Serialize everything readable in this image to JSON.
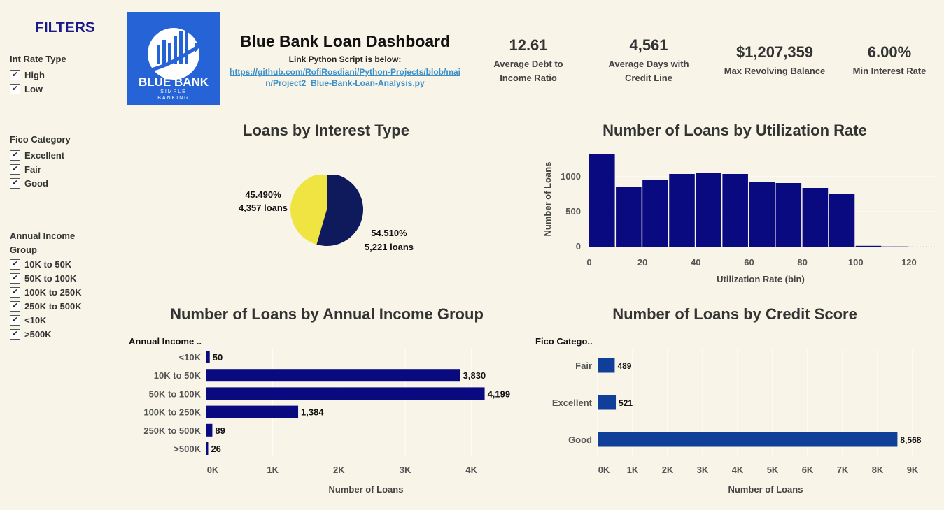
{
  "filters": {
    "title": "FILTERS",
    "groups": [
      {
        "title": "Int Rate Type",
        "options": [
          "High",
          "Low"
        ]
      },
      {
        "title": "Fico Category",
        "options": [
          "Excellent",
          "Fair",
          "Good"
        ]
      },
      {
        "title": "Annual Income Group",
        "options": [
          "10K to 50K",
          "50K to 100K",
          "100K to 250K",
          "250K to 500K",
          "<10K",
          ">500K"
        ]
      }
    ]
  },
  "logo": {
    "line1": "BLUE BANK",
    "line2": "SIMPLE",
    "line3": "BANKING",
    "icon": "bar-chart-arrow-icon"
  },
  "header": {
    "title": "Blue Bank Loan Dashboard",
    "subtitle": "Link Python Script is below:",
    "link": "https://github.com/RofiRosdiani/Python-Projects/blob/main/Project2_Blue-Bank-Loan-Analysis.py"
  },
  "kpis": [
    {
      "value": "12.61",
      "label": "Average Debt to Income Ratio"
    },
    {
      "value": "4,561",
      "label": "Average Days with Credit Line"
    },
    {
      "value": "$1,207,359",
      "label": "Max Revolving Balance"
    },
    {
      "value": "6.00%",
      "label": "Min Interest Rate"
    }
  ],
  "colors": {
    "navy": "#0a0a80",
    "pie_navy": "#0e1a5c",
    "pie_yellow": "#f0e442",
    "credit_blue": "#0f3f98"
  },
  "chart_data": [
    {
      "type": "pie",
      "title": "Loans by Interest Type",
      "slices": [
        {
          "pct_label": "45.490%",
          "count_label": "4,357 loans",
          "value": 4357,
          "color": "#f0e442"
        },
        {
          "pct_label": "54.510%",
          "count_label": "5,221 loans",
          "value": 5221,
          "color": "#0e1a5c"
        }
      ]
    },
    {
      "type": "bar",
      "title": "Number of Loans by Utilization Rate",
      "xlabel": "Utilization Rate (bin)",
      "ylabel": "Number of Loans",
      "bin_start": [
        0,
        10,
        20,
        30,
        40,
        50,
        60,
        70,
        80,
        90,
        100,
        110
      ],
      "values": [
        1330,
        860,
        950,
        1040,
        1050,
        1040,
        920,
        910,
        840,
        760,
        12,
        3
      ],
      "xticks": [
        "0",
        "20",
        "40",
        "60",
        "80",
        "100",
        "120"
      ],
      "yticks": [
        "0",
        "500",
        "1000"
      ],
      "xlim": [
        0,
        130
      ],
      "ylim": [
        0,
        1400
      ],
      "color": "#0a0a80"
    },
    {
      "type": "bar",
      "orientation": "horizontal",
      "title": "Number of Loans by Annual Income Group",
      "category_header": "Annual Income ..",
      "xlabel": "Number of Loans",
      "categories": [
        "<10K",
        "10K to 50K",
        "50K to 100K",
        "100K to 250K",
        "250K to 500K",
        ">500K"
      ],
      "values": [
        50,
        3830,
        4199,
        1384,
        89,
        26
      ],
      "value_labels": [
        "50",
        "3,830",
        "4,199",
        "1,384",
        "89",
        "26"
      ],
      "xticks": [
        "0K",
        "1K",
        "2K",
        "3K",
        "4K"
      ],
      "xlim": [
        0,
        4700
      ],
      "color": "#0a0a80"
    },
    {
      "type": "bar",
      "orientation": "horizontal",
      "title": "Number of Loans by Credit Score",
      "category_header": "Fico Catego..",
      "xlabel": "Number of Loans",
      "categories": [
        "Fair",
        "Excellent",
        "Good"
      ],
      "values": [
        489,
        521,
        8568
      ],
      "value_labels": [
        "489",
        "521",
        "8,568"
      ],
      "xticks": [
        "0K",
        "1K",
        "2K",
        "3K",
        "4K",
        "5K",
        "6K",
        "7K",
        "8K",
        "9K"
      ],
      "xlim": [
        0,
        9500
      ],
      "color": "#0f3f98"
    }
  ]
}
